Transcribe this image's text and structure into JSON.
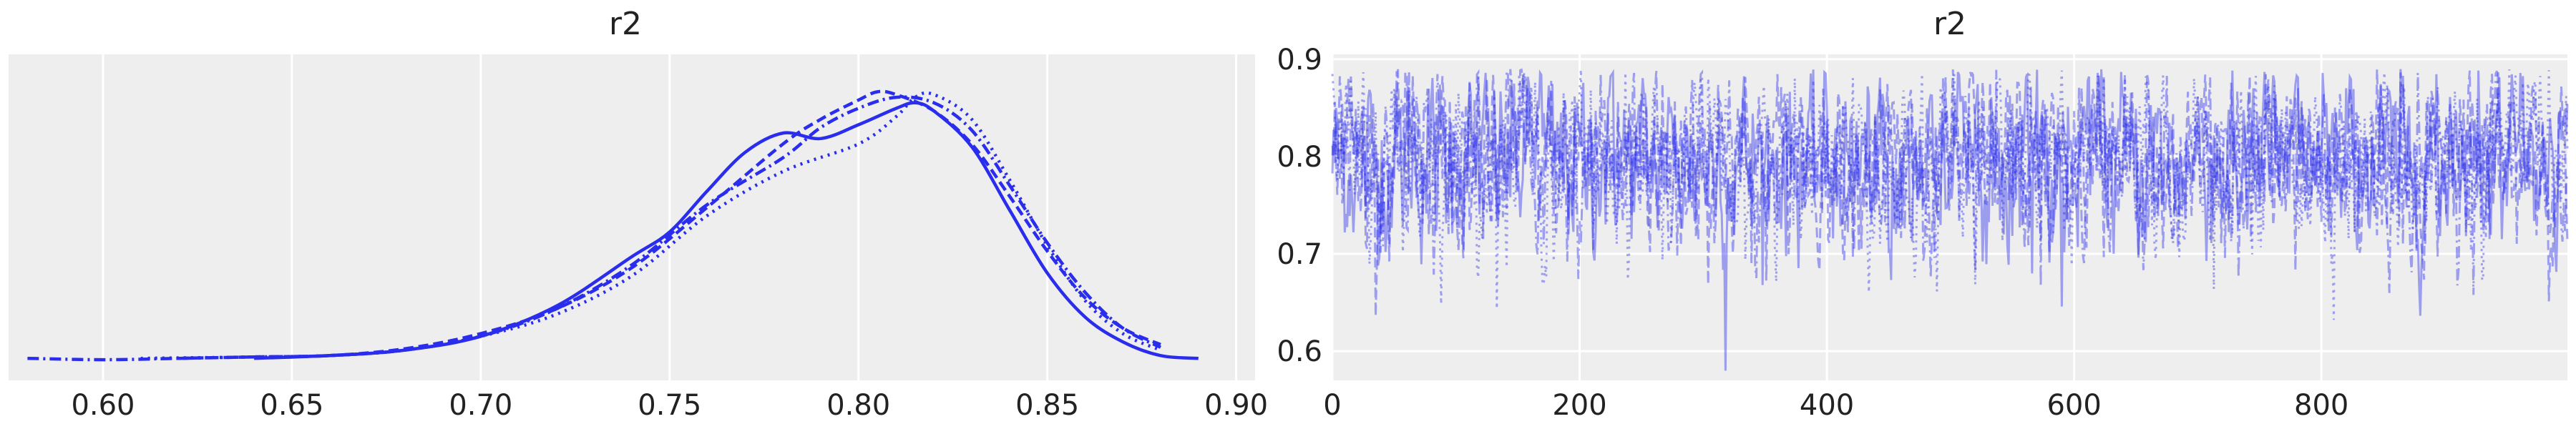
{
  "chart_data": [
    {
      "type": "line",
      "title": "r2",
      "xlabel": "",
      "ylabel": "",
      "xlim": [
        0.575,
        0.905
      ],
      "ylim": [
        0,
        1.08
      ],
      "x_ticks": [
        "0.60",
        "0.65",
        "0.70",
        "0.75",
        "0.80",
        "0.85",
        "0.90"
      ],
      "grid": true,
      "line_styles": [
        "solid",
        "dashed",
        "dotted",
        "dashdot"
      ],
      "color": "#2a2eec",
      "series": [
        {
          "x": [
            0.64,
            0.66,
            0.68,
            0.7,
            0.72,
            0.74,
            0.75,
            0.76,
            0.77,
            0.78,
            0.79,
            0.8,
            0.81,
            0.815,
            0.82,
            0.83,
            0.84,
            0.85,
            0.86,
            0.87,
            0.88,
            0.89
          ],
          "y": [
            0.01,
            0.02,
            0.04,
            0.09,
            0.2,
            0.38,
            0.47,
            0.62,
            0.76,
            0.83,
            0.81,
            0.86,
            0.92,
            0.94,
            0.91,
            0.78,
            0.55,
            0.32,
            0.16,
            0.07,
            0.02,
            0.01
          ]
        },
        {
          "x": [
            0.62,
            0.64,
            0.66,
            0.68,
            0.7,
            0.72,
            0.74,
            0.76,
            0.78,
            0.79,
            0.8,
            0.805,
            0.81,
            0.82,
            0.83,
            0.84,
            0.85,
            0.86,
            0.87,
            0.88
          ],
          "y": [
            0.01,
            0.015,
            0.02,
            0.045,
            0.1,
            0.19,
            0.34,
            0.56,
            0.79,
            0.88,
            0.95,
            0.98,
            0.97,
            0.91,
            0.79,
            0.6,
            0.4,
            0.23,
            0.12,
            0.06
          ]
        },
        {
          "x": [
            0.61,
            0.64,
            0.66,
            0.68,
            0.7,
            0.72,
            0.74,
            0.76,
            0.78,
            0.8,
            0.81,
            0.815,
            0.82,
            0.83,
            0.84,
            0.85,
            0.86,
            0.87,
            0.88
          ],
          "y": [
            0.01,
            0.015,
            0.02,
            0.04,
            0.09,
            0.17,
            0.31,
            0.53,
            0.69,
            0.79,
            0.89,
            0.96,
            0.97,
            0.88,
            0.66,
            0.42,
            0.22,
            0.1,
            0.04
          ]
        },
        {
          "x": [
            0.58,
            0.6,
            0.62,
            0.64,
            0.66,
            0.68,
            0.7,
            0.72,
            0.74,
            0.76,
            0.78,
            0.79,
            0.8,
            0.81,
            0.82,
            0.83,
            0.84,
            0.85,
            0.86,
            0.87,
            0.88
          ],
          "y": [
            0.01,
            0.005,
            0.01,
            0.015,
            0.02,
            0.04,
            0.09,
            0.19,
            0.35,
            0.57,
            0.74,
            0.85,
            0.92,
            0.96,
            0.94,
            0.84,
            0.64,
            0.43,
            0.25,
            0.12,
            0.05
          ]
        }
      ]
    },
    {
      "type": "line",
      "title": "r2",
      "xlabel": "",
      "ylabel": "",
      "xlim": [
        0,
        999
      ],
      "ylim": [
        0.57,
        0.905
      ],
      "x_ticks": [
        "0",
        "200",
        "400",
        "600",
        "800"
      ],
      "y_ticks": [
        "0.6",
        "0.7",
        "0.8",
        "0.9"
      ],
      "grid": true,
      "line_styles": [
        "solid",
        "dashed",
        "dotted",
        "dashdot"
      ],
      "color": "#2a2eec",
      "draws_per_chain": 1000,
      "chains": 4,
      "mean": 0.795,
      "std": 0.04,
      "max": 0.89,
      "min": 0.58,
      "min_at_draw": 318
    }
  ]
}
